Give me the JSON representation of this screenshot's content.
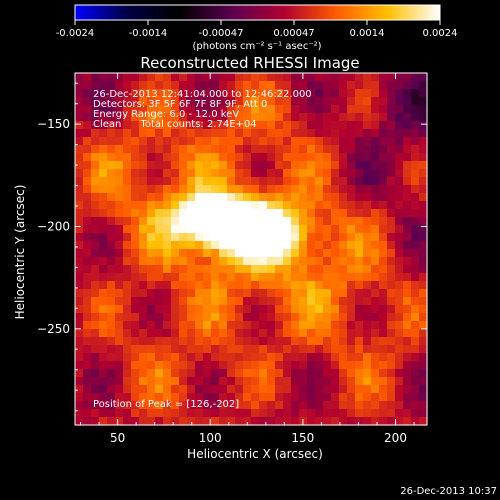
{
  "colorbar": {
    "ticks": [
      "-0.0024",
      "-0.0014",
      "-0.00047",
      "0.00047",
      "0.0014",
      "0.0024"
    ],
    "units_html": "(photons cm⁻² s⁻¹ asec⁻²)",
    "colors": [
      "#0000ff",
      "#000044",
      "#000000",
      "#5a0050",
      "#b00030",
      "#ff5a00",
      "#ffc000",
      "#ffffff"
    ]
  },
  "title": "Reconstructed RHESSI Image",
  "info": {
    "time_range": "26-Dec-2013 12:41:04.000 to 12:46:22.000",
    "detectors": "Detectors: 3F 5F 6F 7F 8F 9F, Att 0",
    "energy": "Energy Range: 6.0 - 12.0 keV",
    "clean": "Clean      Total counts: 2.74E+04",
    "peak": "Position of Peak = [126,-202]"
  },
  "timestamp": "26-Dec-2013 10:37",
  "chart_data": {
    "type": "heatmap",
    "title": "Reconstructed RHESSI Image",
    "xlabel": "Heliocentric X (arcsec)",
    "ylabel": "Heliocentric Y (arcsec)",
    "xlim": [
      27,
      217
    ],
    "ylim": [
      -297,
      -125
    ],
    "xticks": [
      50,
      100,
      150,
      200
    ],
    "yticks": [
      -150,
      -200,
      -250
    ],
    "color_range": [
      -0.0024,
      0.0024
    ],
    "peak": [
      126,
      -202
    ],
    "sources": [
      {
        "x": 126,
        "y": -202,
        "sx": 16,
        "sy": 9,
        "amp": 0.0024
      },
      {
        "x": 100,
        "y": -197,
        "sx": 15,
        "sy": 9,
        "amp": 0.002
      },
      {
        "x": 110,
        "y": -205,
        "sx": 45,
        "sy": 25,
        "amp": 0.0009
      },
      {
        "x": 60,
        "y": -170,
        "sx": 25,
        "sy": 22,
        "amp": 0.0006
      },
      {
        "x": 160,
        "y": -225,
        "sx": 30,
        "sy": 25,
        "amp": 0.0006
      },
      {
        "x": 130,
        "y": -150,
        "sx": 30,
        "sy": 20,
        "amp": 0.0005
      },
      {
        "x": 80,
        "y": -270,
        "sx": 35,
        "sy": 25,
        "amp": 0.0005
      },
      {
        "x": 190,
        "y": -270,
        "sx": 25,
        "sy": 25,
        "amp": 0.0004
      },
      {
        "x": 200,
        "y": -150,
        "sx": 20,
        "sy": 25,
        "amp": -0.0003
      }
    ]
  }
}
